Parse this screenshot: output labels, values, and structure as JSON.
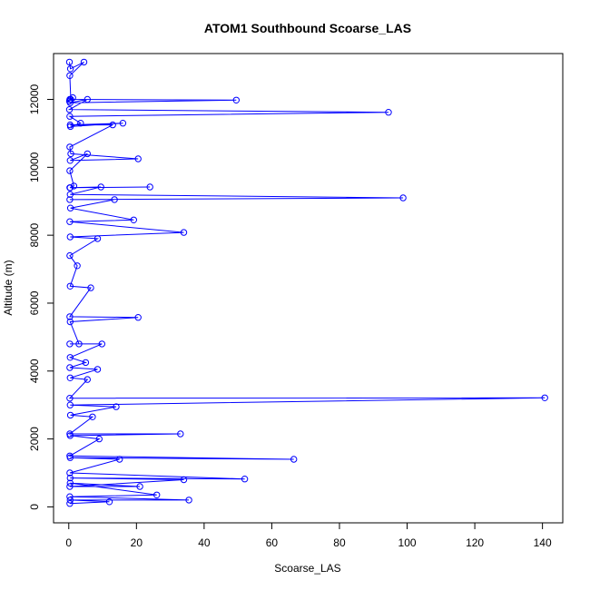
{
  "chart_data": {
    "type": "line",
    "title": "ATOM1 Southbound Scoarse_LAS",
    "xlabel": "Scoarse_LAS",
    "ylabel": "Altitude (m)",
    "xlim": [
      -4.5,
      146
    ],
    "ylim": [
      -470,
      13350
    ],
    "xticks": [
      0,
      20,
      40,
      60,
      80,
      100,
      120,
      140
    ],
    "yticks": [
      0,
      2000,
      4000,
      6000,
      8000,
      10000,
      12000
    ],
    "grid": false,
    "legend": "none",
    "line_color": "#0000ff",
    "marker": "open-circle",
    "series": [
      {
        "x": [
          0.2,
          0.5,
          4.5,
          0.3,
          0.6,
          0.2,
          1.2,
          0.3,
          49.5,
          0.4,
          5.5,
          0.2,
          94.5,
          0.3,
          3.5,
          0.5,
          16,
          0.4,
          13,
          0.3,
          0.6,
          20.5,
          0.4,
          5.5,
          0.3,
          1.5,
          0.4,
          24,
          0.3,
          9.5,
          0.4,
          98.8,
          0.3,
          13.5,
          0.5,
          19.2,
          0.3,
          34,
          0.4,
          8.5,
          0.3,
          2.5,
          0.4,
          6.5,
          0.3,
          20.5,
          0.4,
          3,
          0.3,
          9.8,
          0.4,
          5,
          0.3,
          8.5,
          0.4,
          5.5,
          0.3,
          140.7,
          0.4,
          14,
          0.5,
          7,
          0.3,
          33,
          0.4,
          9,
          0.3,
          66.5,
          0.4,
          15,
          0.3,
          52,
          0.4,
          34,
          0.3,
          21,
          0.4,
          26,
          0.3,
          35.5,
          0.4,
          12,
          0.3
        ],
        "y": [
          13100,
          12900,
          13100,
          12700,
          12000,
          11950,
          12050,
          12000,
          11980,
          11900,
          12000,
          11700,
          11620,
          11500,
          11300,
          11200,
          11300,
          11250,
          11250,
          10600,
          10400,
          10250,
          10200,
          10400,
          9900,
          9450,
          9400,
          9420,
          9400,
          9420,
          9200,
          9100,
          9050,
          9050,
          8800,
          8450,
          8400,
          8080,
          7950,
          7900,
          7400,
          7100,
          6500,
          6450,
          5600,
          5580,
          5450,
          4800,
          4800,
          4800,
          4400,
          4250,
          4100,
          4050,
          3800,
          3750,
          3200,
          3210,
          3000,
          2950,
          2700,
          2650,
          2150,
          2150,
          2100,
          2000,
          1500,
          1400,
          1450,
          1400,
          1000,
          820,
          850,
          800,
          600,
          600,
          700,
          350,
          300,
          200,
          200,
          150,
          100
        ]
      }
    ]
  }
}
